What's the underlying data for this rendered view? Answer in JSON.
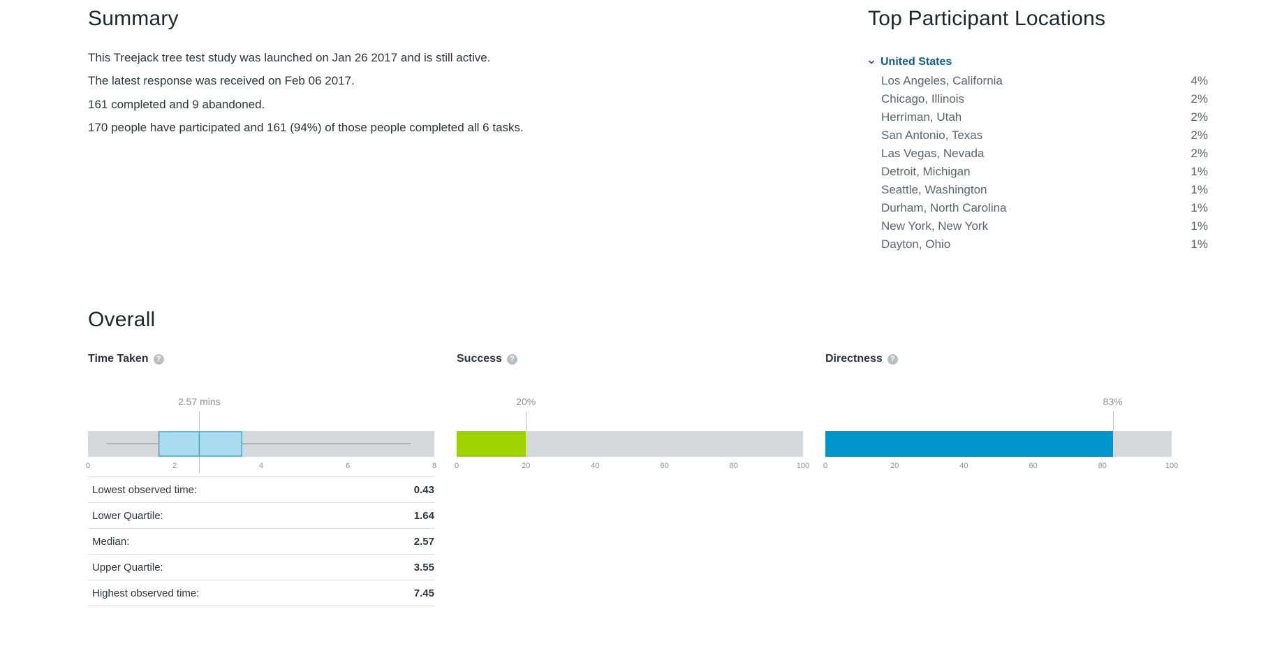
{
  "summary": {
    "title": "Summary",
    "lines": [
      "This Treejack tree test study was launched on Jan 26 2017 and is still active.",
      "The latest response was received on Feb 06 2017.",
      "161 completed and 9 abandoned.",
      "170 people have participated and 161 (94%) of those people completed all 6 tasks."
    ]
  },
  "locations": {
    "title": "Top Participant Locations",
    "country": "United States",
    "items": [
      {
        "name": "Los Angeles, California",
        "pct": "4%"
      },
      {
        "name": "Chicago, Illinois",
        "pct": "2%"
      },
      {
        "name": "Herriman, Utah",
        "pct": "2%"
      },
      {
        "name": "San Antonio, Texas",
        "pct": "2%"
      },
      {
        "name": "Las Vegas, Nevada",
        "pct": "2%"
      },
      {
        "name": "Detroit, Michigan",
        "pct": "1%"
      },
      {
        "name": "Seattle, Washington",
        "pct": "1%"
      },
      {
        "name": "Durham, North Carolina",
        "pct": "1%"
      },
      {
        "name": "New York, New York",
        "pct": "1%"
      },
      {
        "name": "Dayton, Ohio",
        "pct": "1%"
      }
    ]
  },
  "overall": {
    "title": "Overall",
    "help_glyph": "?",
    "time_taken": {
      "title": "Time Taken",
      "marker_label": "2.57 mins",
      "stats": [
        {
          "label": "Lowest observed time:",
          "value": "0.43"
        },
        {
          "label": "Lower Quartile:",
          "value": "1.64"
        },
        {
          "label": "Median:",
          "value": "2.57"
        },
        {
          "label": "Upper Quartile:",
          "value": "3.55"
        },
        {
          "label": "Highest observed time:",
          "value": "7.45"
        }
      ]
    },
    "success": {
      "title": "Success",
      "marker_label": "20%"
    },
    "directness": {
      "title": "Directness",
      "marker_label": "83%"
    }
  },
  "chart_data": [
    {
      "type": "boxplot",
      "min": 0.43,
      "q1": 1.64,
      "median": 2.57,
      "q3": 3.55,
      "max": 7.45,
      "xlim": [
        0,
        8
      ],
      "ticks": [
        "0",
        "2",
        "4",
        "6",
        "8"
      ],
      "tick_values": [
        0,
        2,
        4,
        6,
        8
      ],
      "box_color": "#a9dcef",
      "box_stroke": "#2a9cc8"
    },
    {
      "type": "bar",
      "value": 20,
      "xlim": [
        0,
        100
      ],
      "ticks": [
        "0",
        "20",
        "40",
        "60",
        "80",
        "100"
      ],
      "tick_values": [
        0,
        20,
        40,
        60,
        80,
        100
      ],
      "color": "#9dd400"
    },
    {
      "type": "bar",
      "value": 83,
      "xlim": [
        0,
        100
      ],
      "ticks": [
        "0",
        "20",
        "40",
        "60",
        "80",
        "100"
      ],
      "tick_values": [
        0,
        20,
        40,
        60,
        80,
        100
      ],
      "color": "#0096cc"
    }
  ],
  "colors": {
    "track": "#d6d9dc",
    "country_link": "#0a5e8f"
  }
}
